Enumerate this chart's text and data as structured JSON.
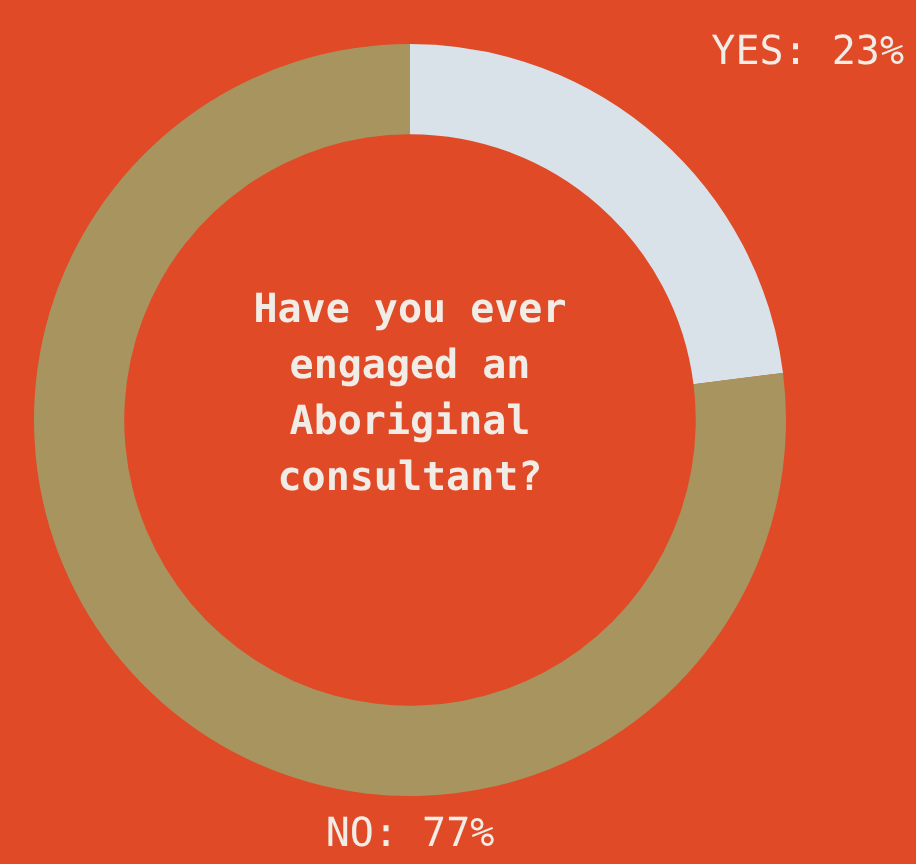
{
  "chart_data": {
    "type": "donut",
    "title": "Have you ever engaged an Aboriginal consultant?",
    "categories": [
      "YES",
      "NO"
    ],
    "values": [
      23,
      77
    ],
    "colors": [
      "#d8e2e8",
      "#a8945e"
    ],
    "value_labels": [
      "23%",
      "77%"
    ],
    "legend": false
  }
}
